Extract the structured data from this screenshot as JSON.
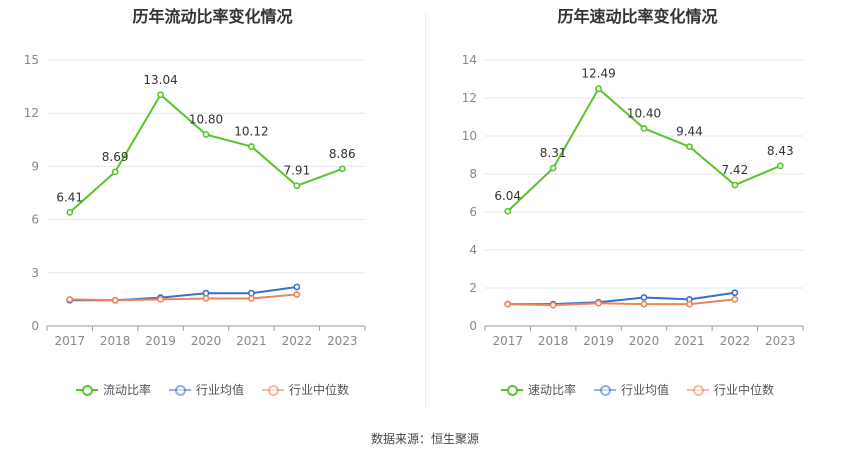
{
  "source_text": "数据来源：恒生聚源",
  "chart_data": [
    {
      "type": "line",
      "title": "历年流动比率变化情况",
      "categories": [
        "2017",
        "2018",
        "2019",
        "2020",
        "2021",
        "2022",
        "2023"
      ],
      "ylim": [
        0,
        15
      ],
      "yticks": [
        0,
        3,
        6,
        9,
        12,
        15
      ],
      "grid": true,
      "legend_placement": "bottom-center",
      "series": [
        {
          "name": "流动比率",
          "color": "#5ac42d",
          "values": [
            6.41,
            8.69,
            13.04,
            10.8,
            10.12,
            7.91,
            8.86
          ],
          "labels": [
            "6.41",
            "8.69",
            "13.04",
            "10.80",
            "10.12",
            "7.91",
            "8.86"
          ]
        },
        {
          "name": "行业均值",
          "color": "#3a6fcc",
          "values": [
            1.45,
            1.45,
            1.6,
            1.85,
            1.85,
            2.2,
            null
          ]
        },
        {
          "name": "行业中位数",
          "color": "#f0825a",
          "values": [
            1.5,
            1.45,
            1.5,
            1.55,
            1.55,
            1.78,
            null
          ]
        }
      ]
    },
    {
      "type": "line",
      "title": "历年速动比率变化情况",
      "categories": [
        "2017",
        "2018",
        "2019",
        "2020",
        "2021",
        "2022",
        "2023"
      ],
      "ylim": [
        0,
        14
      ],
      "yticks": [
        0,
        2,
        4,
        6,
        8,
        10,
        12,
        14
      ],
      "grid": true,
      "legend_placement": "bottom-center",
      "series": [
        {
          "name": "速动比率",
          "color": "#5ac42d",
          "values": [
            6.04,
            8.31,
            12.49,
            10.4,
            9.44,
            7.42,
            8.43
          ],
          "labels": [
            "6.04",
            "8.31",
            "12.49",
            "10.40",
            "9.44",
            "7.42",
            "8.43"
          ]
        },
        {
          "name": "行业均值",
          "color": "#3a6fcc",
          "values": [
            1.15,
            1.15,
            1.25,
            1.5,
            1.4,
            1.75,
            null
          ]
        },
        {
          "name": "行业中位数",
          "color": "#f0825a",
          "values": [
            1.15,
            1.1,
            1.2,
            1.15,
            1.15,
            1.4,
            null
          ]
        }
      ]
    }
  ]
}
